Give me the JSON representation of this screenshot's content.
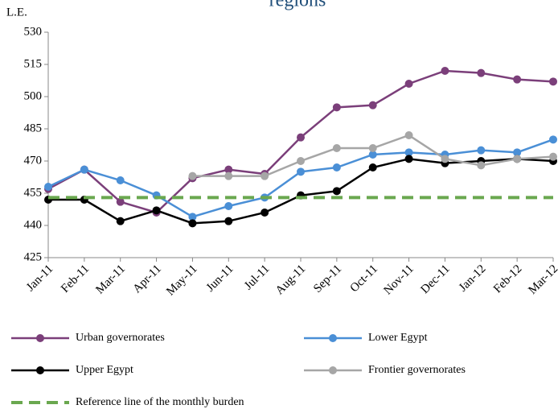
{
  "chart_data": {
    "type": "line",
    "title": "regions",
    "y_label": "L.E.",
    "categories": [
      "Jan-11",
      "Feb-11",
      "Mar-11",
      "Apr-11",
      "May-11",
      "Jun-11",
      "Jul-11",
      "Aug-11",
      "Sep-11",
      "Oct-11",
      "Nov-11",
      "Dec-11",
      "Jan-12",
      "Feb-12",
      "Mar-12"
    ],
    "series": [
      {
        "name": "Urban governorates",
        "color": "#7b3f7a",
        "values": [
          457,
          466,
          451,
          446,
          462,
          466,
          464,
          481,
          495,
          496,
          506,
          512,
          511,
          508,
          507
        ]
      },
      {
        "name": "Lower Egypt",
        "color": "#4a8fd6",
        "values": [
          458,
          466,
          461,
          454,
          444,
          449,
          453,
          465,
          467,
          473,
          474,
          473,
          475,
          474,
          480
        ]
      },
      {
        "name": "Upper Egypt",
        "color": "#000000",
        "values": [
          452,
          452,
          442,
          447,
          441,
          442,
          446,
          454,
          456,
          467,
          471,
          469,
          470,
          471,
          470
        ]
      },
      {
        "name": "Frontier governorates",
        "color": "#a6a6a6",
        "values": [
          null,
          null,
          null,
          null,
          463,
          463,
          463,
          470,
          476,
          476,
          482,
          471,
          468,
          471,
          472
        ]
      },
      {
        "name": "Reference line of the monthly burden",
        "color": "#6aa84f",
        "dashed": true,
        "values": [
          453,
          453,
          453,
          453,
          453,
          453,
          453,
          453,
          453,
          453,
          453,
          453,
          453,
          453,
          453
        ]
      }
    ],
    "ylim": [
      425,
      530
    ],
    "yticks": [
      425,
      440,
      455,
      470,
      485,
      500,
      515,
      530
    ]
  }
}
